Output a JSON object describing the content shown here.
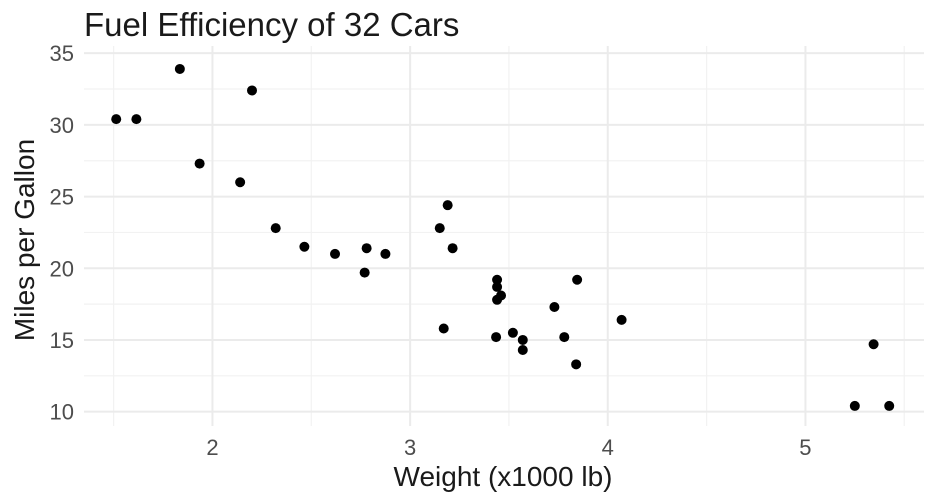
{
  "chart_data": {
    "type": "scatter",
    "title": "Fuel Efficiency of 32 Cars",
    "xlabel": "Weight (x1000 lb)",
    "ylabel": "Miles per Gallon",
    "xlim": [
      1.35,
      5.6
    ],
    "ylim": [
      9,
      35.5
    ],
    "x_major_ticks": [
      2,
      3,
      4,
      5
    ],
    "x_minor_ticks": [
      1.5,
      2.5,
      3.5,
      4.5,
      5.5
    ],
    "y_major_ticks": [
      10,
      15,
      20,
      25,
      30,
      35
    ],
    "y_minor_ticks": [
      12.5,
      17.5,
      22.5,
      27.5,
      32.5
    ],
    "x_tick_labels": [
      "2",
      "3",
      "4",
      "5"
    ],
    "y_tick_labels": [
      "10",
      "15",
      "20",
      "25",
      "30",
      "35"
    ],
    "grid": true,
    "point_color": "#000000",
    "points": [
      {
        "x": 2.62,
        "y": 21.0
      },
      {
        "x": 2.875,
        "y": 21.0
      },
      {
        "x": 2.32,
        "y": 22.8
      },
      {
        "x": 3.215,
        "y": 21.4
      },
      {
        "x": 3.44,
        "y": 18.7
      },
      {
        "x": 3.46,
        "y": 18.1
      },
      {
        "x": 3.57,
        "y": 14.3
      },
      {
        "x": 3.19,
        "y": 24.4
      },
      {
        "x": 3.15,
        "y": 22.8
      },
      {
        "x": 3.44,
        "y": 19.2
      },
      {
        "x": 3.44,
        "y": 17.8
      },
      {
        "x": 4.07,
        "y": 16.4
      },
      {
        "x": 3.73,
        "y": 17.3
      },
      {
        "x": 3.78,
        "y": 15.2
      },
      {
        "x": 5.25,
        "y": 10.4
      },
      {
        "x": 5.424,
        "y": 10.4
      },
      {
        "x": 5.345,
        "y": 14.7
      },
      {
        "x": 2.2,
        "y": 32.4
      },
      {
        "x": 1.615,
        "y": 30.4
      },
      {
        "x": 1.835,
        "y": 33.9
      },
      {
        "x": 2.465,
        "y": 21.5
      },
      {
        "x": 3.52,
        "y": 15.5
      },
      {
        "x": 3.435,
        "y": 15.2
      },
      {
        "x": 3.84,
        "y": 13.3
      },
      {
        "x": 3.845,
        "y": 19.2
      },
      {
        "x": 1.935,
        "y": 27.3
      },
      {
        "x": 2.14,
        "y": 26.0
      },
      {
        "x": 1.513,
        "y": 30.4
      },
      {
        "x": 3.17,
        "y": 15.8
      },
      {
        "x": 2.77,
        "y": 19.7
      },
      {
        "x": 3.57,
        "y": 15.0
      },
      {
        "x": 2.78,
        "y": 21.4
      }
    ]
  }
}
